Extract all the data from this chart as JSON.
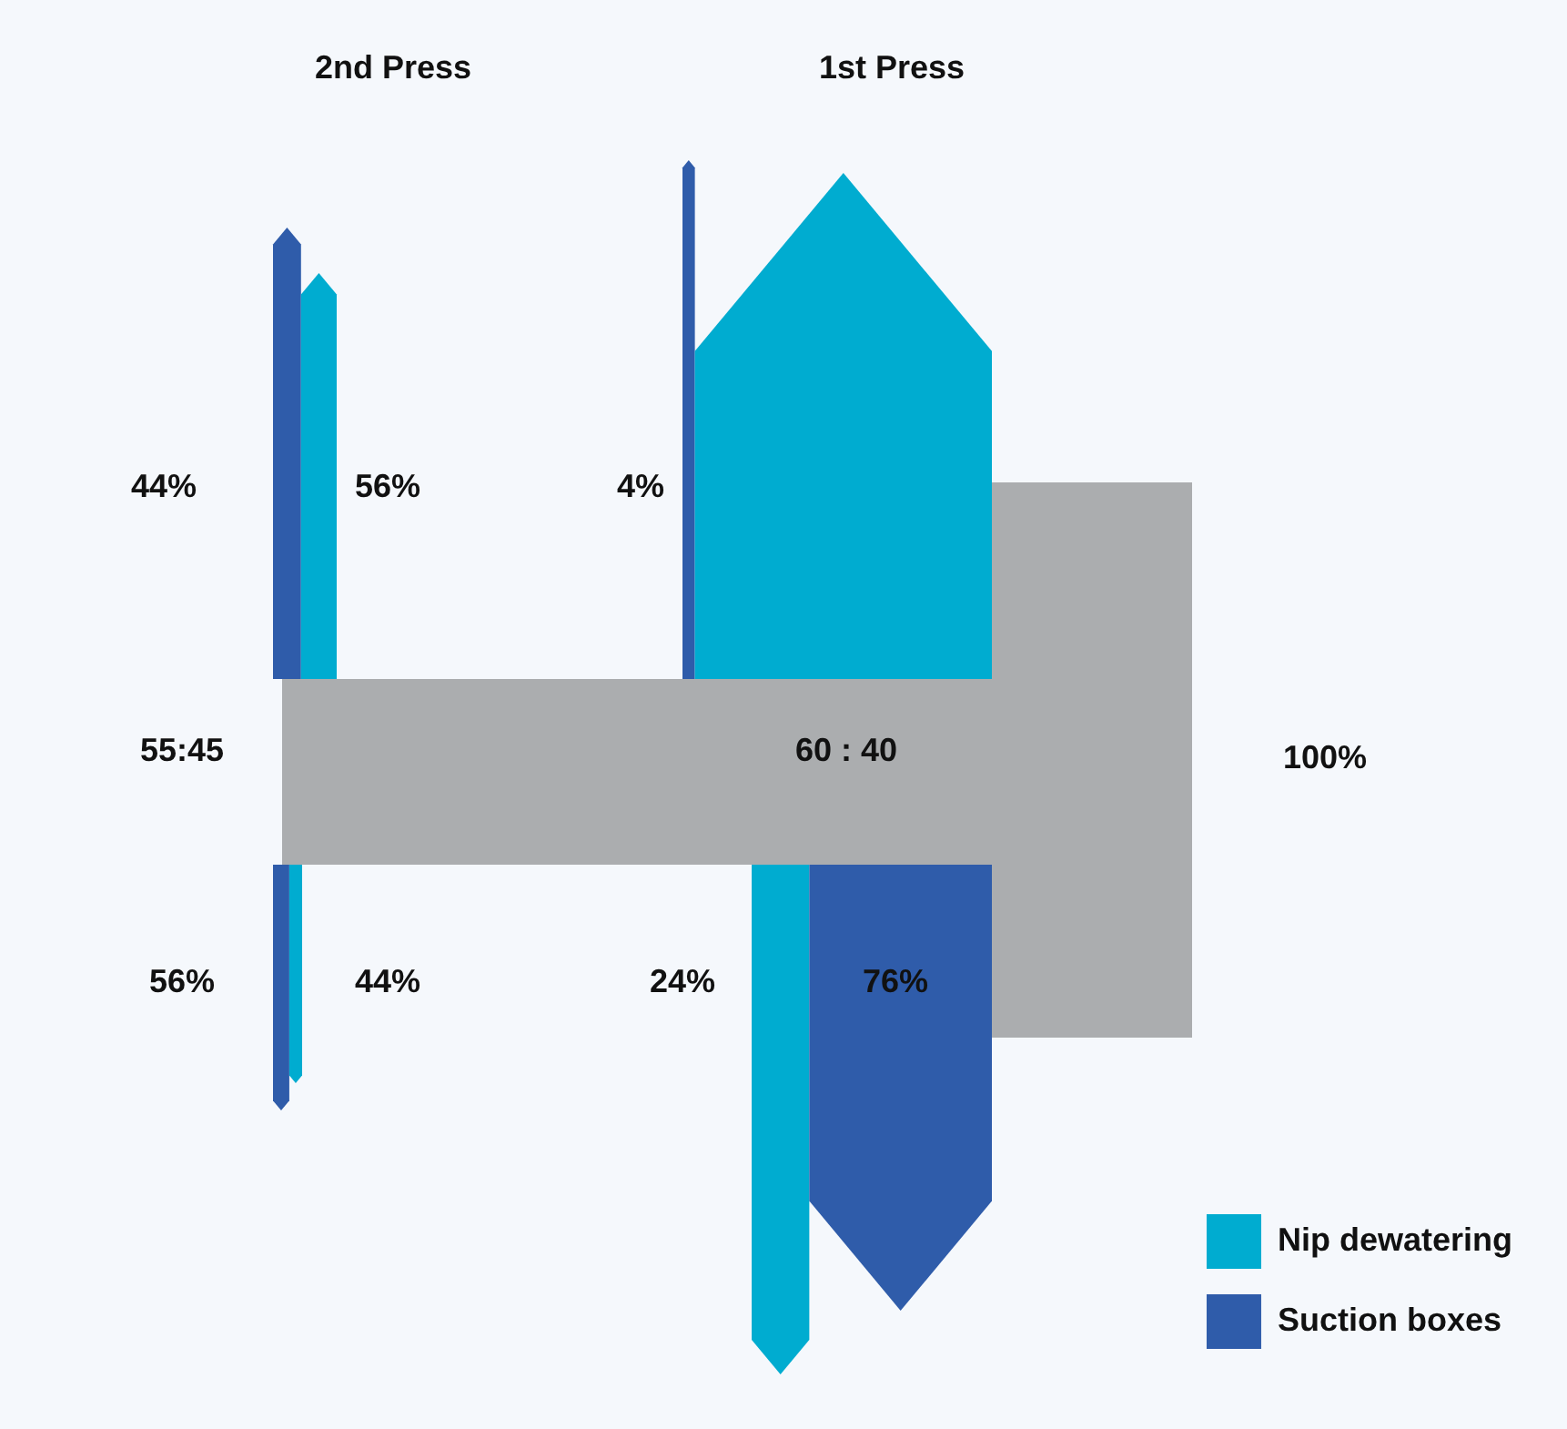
{
  "chart_data": {
    "type": "other",
    "categories": [
      "2nd Press",
      "1st Press"
    ],
    "series": [
      {
        "name": "Nip dewatering",
        "color": "#00acd0",
        "values": [
          56,
          null
        ],
        "value_labels": [
          "56%",
          null
        ]
      },
      {
        "name": "Suction boxes",
        "color": "#2f5caa",
        "values": [
          44,
          4
        ],
        "value_labels": [
          "44%",
          "4%"
        ]
      },
      {
        "color": "#00acd0",
        "values": [
          44,
          24
        ],
        "value_labels": [
          "44%",
          "24%"
        ]
      },
      {
        "color": "#2f5caa",
        "values": [
          56,
          76
        ],
        "value_labels": [
          "56%",
          "76%"
        ]
      }
    ],
    "annotations": [
      "55:45",
      "60 : 40",
      "100%"
    ],
    "legend": "bottom right"
  }
}
